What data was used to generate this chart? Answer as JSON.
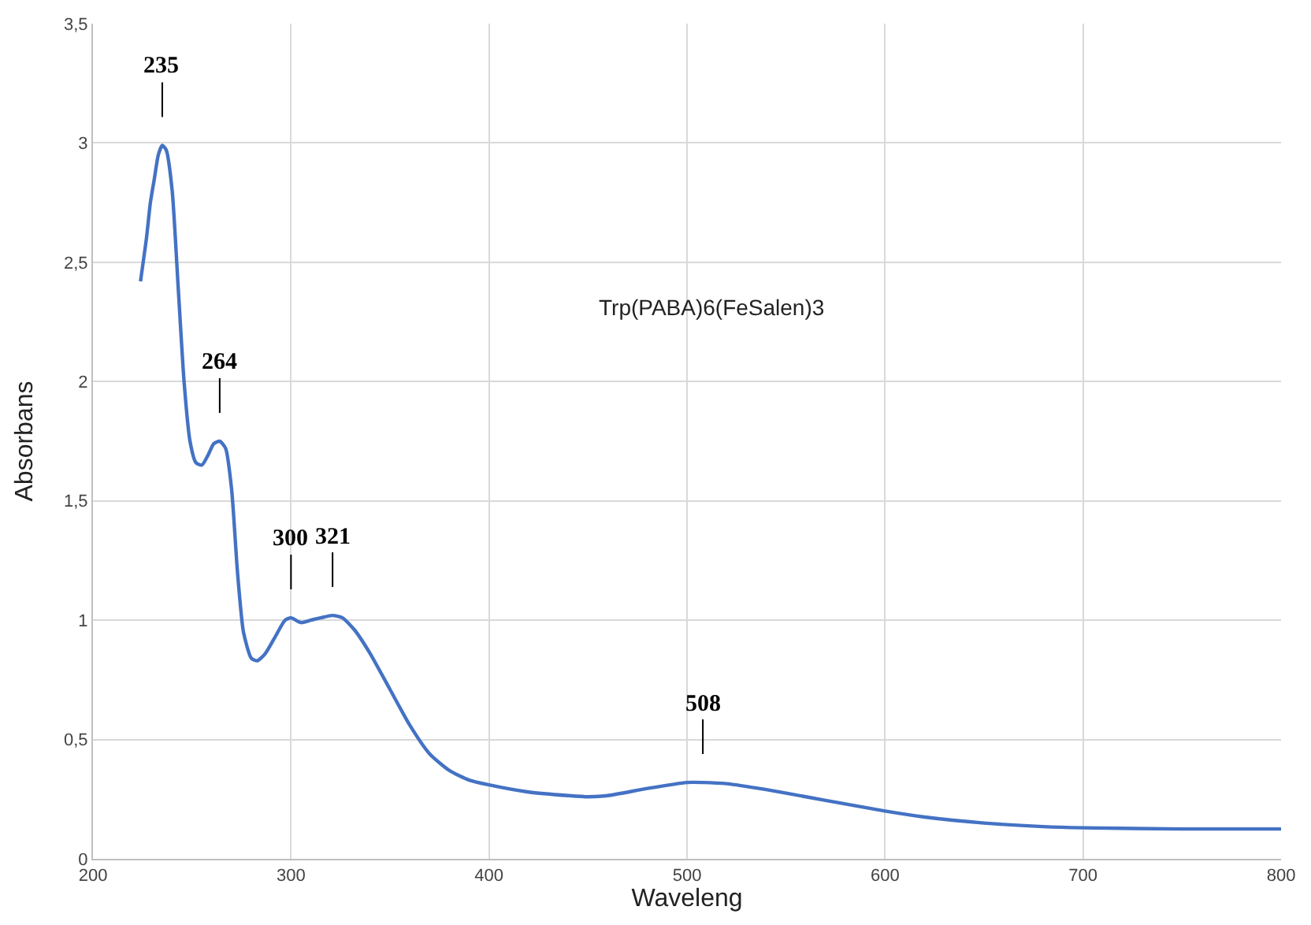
{
  "chart_data": {
    "type": "line",
    "xlabel": "Waveleng",
    "ylabel": "Absorbans",
    "xlim": [
      200,
      800
    ],
    "xticks": [
      200,
      300,
      400,
      500,
      600,
      700,
      800
    ],
    "ylim": [
      0,
      3.5
    ],
    "yticks": [
      0,
      {
        "value": 0.5,
        "label": "0,5"
      },
      1,
      {
        "value": 1.5,
        "label": "1,5"
      },
      2,
      {
        "value": 2.5,
        "label": "2,5"
      },
      3,
      {
        "value": 3.5,
        "label": "3,5"
      }
    ],
    "grid": true,
    "legend": false,
    "marker": "none",
    "line_style": "solid",
    "series": [
      {
        "name": "Trp(PABA)6(FeSalen)3",
        "color": "#4472c4",
        "x": [
          224,
          227,
          229,
          231,
          233,
          235,
          237,
          240,
          243,
          246,
          249,
          252,
          255,
          258,
          261,
          264,
          267,
          270,
          273,
          276,
          280,
          283,
          287,
          292,
          297,
          300,
          305,
          310,
          315,
          321,
          326,
          332,
          340,
          350,
          360,
          370,
          380,
          390,
          400,
          420,
          440,
          450,
          460,
          480,
          500,
          508,
          520,
          540,
          560,
          580,
          600,
          620,
          650,
          680,
          700,
          750,
          800
        ],
        "values": [
          2.42,
          2.6,
          2.75,
          2.85,
          2.95,
          2.99,
          2.97,
          2.8,
          2.4,
          2.0,
          1.75,
          1.66,
          1.65,
          1.69,
          1.74,
          1.75,
          1.72,
          1.55,
          1.2,
          0.95,
          0.84,
          0.83,
          0.86,
          0.93,
          1.0,
          1.01,
          0.99,
          1.0,
          1.01,
          1.02,
          1.01,
          0.96,
          0.86,
          0.71,
          0.56,
          0.44,
          0.37,
          0.33,
          0.31,
          0.28,
          0.265,
          0.26,
          0.265,
          0.295,
          0.32,
          0.32,
          0.315,
          0.29,
          0.26,
          0.23,
          0.2,
          0.175,
          0.15,
          0.135,
          0.13,
          0.125,
          0.125
        ]
      }
    ],
    "annotations": [
      {
        "text": "235",
        "x": 235,
        "y": 2.99
      },
      {
        "text": "264",
        "x": 264,
        "y": 1.75
      },
      {
        "text": "300",
        "x": 300,
        "y": 1.01
      },
      {
        "text": "321",
        "x": 321,
        "y": 1.02
      },
      {
        "text": "508",
        "x": 508,
        "y": 0.32
      }
    ]
  }
}
